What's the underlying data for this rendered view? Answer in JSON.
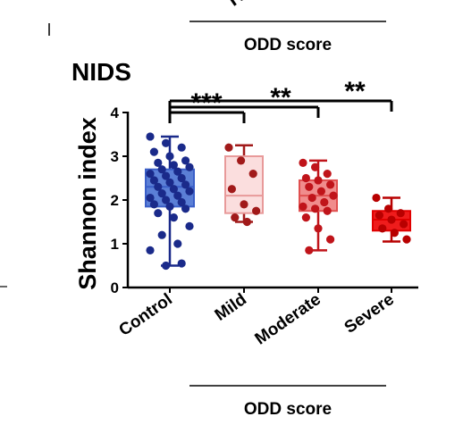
{
  "top_fragment": {
    "partial_text": "N",
    "group_label": "ODD score"
  },
  "chart_data": {
    "type": "box",
    "title": "NIDS",
    "ylabel": "Shannon index",
    "xlabel": "ODD score",
    "ylim": [
      0,
      4
    ],
    "yticks": [
      "0",
      "1",
      "2",
      "3",
      "4"
    ],
    "categories": [
      "Control",
      "Mild",
      "Moderate",
      "Severe"
    ],
    "colors": {
      "Control": {
        "box": "#3a5fc8",
        "fill": "#5b7fd6",
        "point": "#1a2a8a"
      },
      "Mild": {
        "box": "#e89a9a",
        "fill": "#fbdede",
        "point": "#a11a1a"
      },
      "Moderate": {
        "box": "#e05050",
        "fill": "#f08c8c",
        "point": "#c0141a"
      },
      "Severe": {
        "box": "#e00000",
        "fill": "#ef1c1c",
        "point": "#b80000"
      }
    },
    "boxes": [
      {
        "name": "Control",
        "min": 0.5,
        "q1": 1.85,
        "median": 2.3,
        "q3": 2.7,
        "max": 3.45,
        "points": [
          3.45,
          3.3,
          3.2,
          3.1,
          3.0,
          2.9,
          2.85,
          2.8,
          2.75,
          2.7,
          2.65,
          2.6,
          2.55,
          2.5,
          2.45,
          2.4,
          2.35,
          2.3,
          2.25,
          2.2,
          2.15,
          2.1,
          2.05,
          2.0,
          1.95,
          1.9,
          1.85,
          1.8,
          1.7,
          1.6,
          1.4,
          1.2,
          1.0,
          0.85,
          0.5,
          0.55
        ]
      },
      {
        "name": "Mild",
        "min": 1.5,
        "q1": 1.7,
        "median": 2.1,
        "q3": 3.0,
        "max": 3.25,
        "points": [
          3.2,
          2.9,
          2.6,
          2.25,
          1.9,
          1.75,
          1.6,
          1.5
        ]
      },
      {
        "name": "Moderate",
        "min": 0.85,
        "q1": 1.75,
        "median": 2.1,
        "q3": 2.45,
        "max": 2.9,
        "points": [
          2.85,
          2.75,
          2.6,
          2.5,
          2.45,
          2.35,
          2.3,
          2.2,
          2.1,
          2.05,
          1.95,
          1.85,
          1.8,
          1.75,
          1.6,
          1.35,
          1.1,
          0.85
        ]
      },
      {
        "name": "Severe",
        "min": 1.05,
        "q1": 1.3,
        "median": 1.55,
        "q3": 1.75,
        "max": 2.05,
        "points": [
          2.05,
          1.8,
          1.7,
          1.65,
          1.55,
          1.45,
          1.35,
          1.25,
          1.1
        ]
      }
    ],
    "significance": [
      {
        "from": "Control",
        "to": "Mild",
        "label": "***"
      },
      {
        "from": "Control",
        "to": "Moderate",
        "label": "**"
      },
      {
        "from": "Control",
        "to": "Severe",
        "label": "**"
      }
    ]
  }
}
